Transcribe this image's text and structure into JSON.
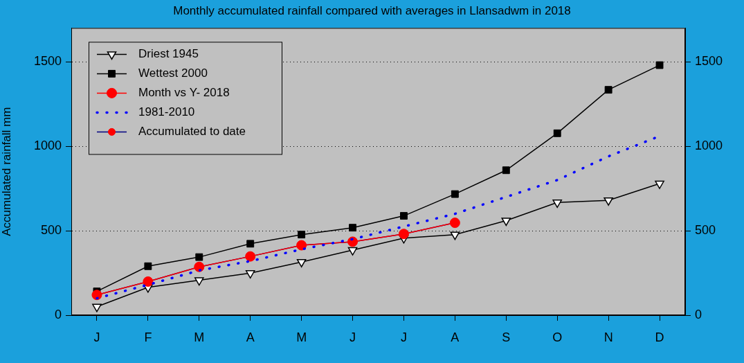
{
  "chart_data": {
    "type": "line",
    "title": "Monthly accumulated rainfall compared with averages in Llansadwm in 2018",
    "y_label": "Accumulated rainfall mm",
    "categories": [
      "J",
      "F",
      "M",
      "A",
      "M",
      "J",
      "J",
      "A",
      "S",
      "O",
      "N",
      "D"
    ],
    "series": [
      {
        "name": "Driest 1945",
        "color": "#000000",
        "marker": "triangle-down",
        "line_style": "solid",
        "values": [
          50,
          165,
          207,
          249,
          315,
          385,
          456,
          477,
          560,
          667,
          680,
          779
        ]
      },
      {
        "name": "Wettest 2000",
        "color": "#000000",
        "marker": "square",
        "line_style": "solid",
        "values": [
          141,
          290,
          344,
          423,
          477,
          518,
          588,
          717,
          858,
          1077,
          1334,
          1480
        ]
      },
      {
        "name": "Month vs Y- 2018",
        "color": "#ff0000",
        "marker": "circle",
        "line_style": "solid",
        "values": [
          120,
          199,
          286,
          348,
          414,
          435,
          481,
          547,
          null,
          null,
          null,
          null
        ]
      },
      {
        "name": "1981-2010",
        "color": "#0000ff",
        "marker": "none",
        "line_style": "dotted",
        "values": [
          100,
          180,
          265,
          320,
          390,
          450,
          525,
          600,
          700,
          800,
          940,
          1060
        ]
      },
      {
        "name": "Accumulated to date",
        "color": "#000080",
        "marker": "circle",
        "line_style": "solid",
        "values": [
          120,
          199,
          286,
          348,
          414,
          435,
          481,
          547,
          null,
          null,
          null,
          null
        ]
      }
    ],
    "ylim": [
      0,
      1700
    ],
    "yticks": [
      0,
      500,
      1000,
      1500
    ],
    "y2lim": [
      0,
      1700
    ],
    "y2ticks": [
      0,
      500,
      1000,
      1500
    ],
    "grid": true,
    "legend": "upper left"
  }
}
